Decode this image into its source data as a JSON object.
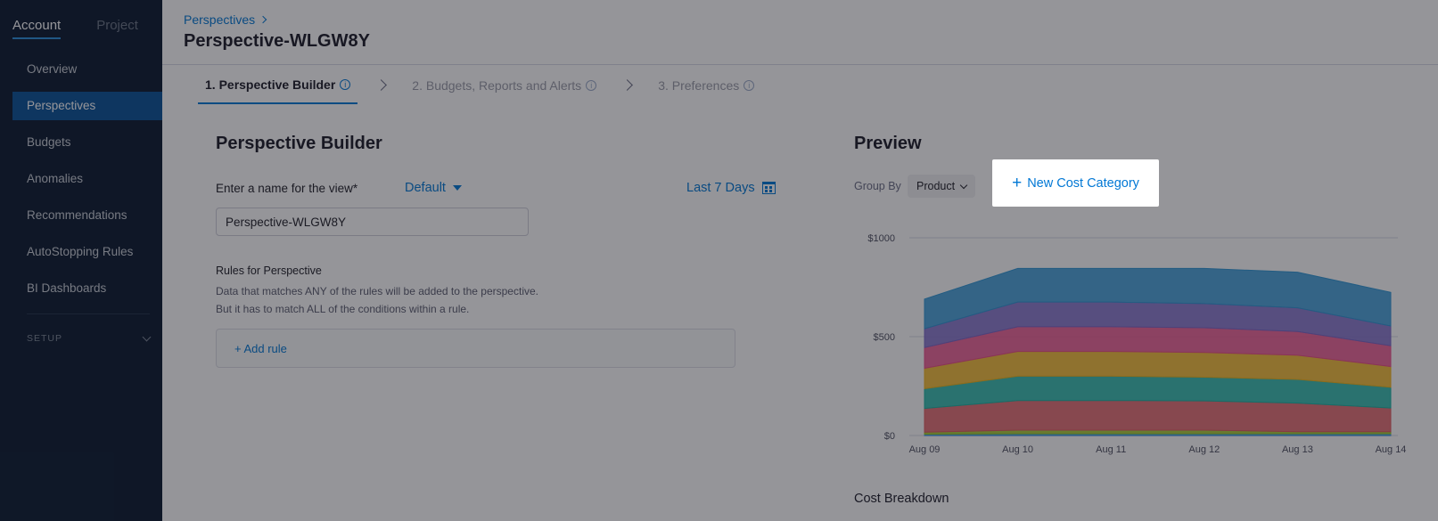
{
  "sidebar": {
    "scope_tabs": [
      {
        "label": "Account",
        "active": true
      },
      {
        "label": "Project",
        "active": false
      }
    ],
    "items": [
      {
        "label": "Overview",
        "active": false
      },
      {
        "label": "Perspectives",
        "active": true
      },
      {
        "label": "Budgets",
        "active": false
      },
      {
        "label": "Anomalies",
        "active": false
      },
      {
        "label": "Recommendations",
        "active": false
      },
      {
        "label": "AutoStopping Rules",
        "active": false
      },
      {
        "label": "BI Dashboards",
        "active": false
      }
    ],
    "setup_label": "SETUP"
  },
  "header": {
    "breadcrumb": "Perspectives",
    "title": "Perspective-WLGW8Y"
  },
  "steps": [
    {
      "label": "1. Perspective Builder",
      "active": true
    },
    {
      "label": "2. Budgets, Reports and Alerts",
      "active": false
    },
    {
      "label": "3. Preferences",
      "active": false
    }
  ],
  "info_glyph": "i",
  "builder": {
    "title": "Perspective Builder",
    "name_label": "Enter a name for the view*",
    "name_value": "Perspective-WLGW8Y",
    "view_dropdown": "Default",
    "time_range": "Last 7 Days",
    "rules_title": "Rules for Perspective",
    "rules_desc_1": "Data that matches ANY of the rules will be added to the perspective.",
    "rules_desc_2": "But it has to match ALL of the conditions within a rule.",
    "add_rule": "+ Add rule"
  },
  "preview": {
    "title": "Preview",
    "group_by_label": "Group By",
    "group_by_value": "Product",
    "new_cost_category_plus": "+",
    "new_cost_category": "New Cost Category",
    "cost_breakdown": "Cost Breakdown"
  },
  "chart_data": {
    "type": "area",
    "stacked": true,
    "categories": [
      "Aug 09",
      "Aug 10",
      "Aug 11",
      "Aug 12",
      "Aug 13",
      "Aug 14"
    ],
    "y_ticks": [
      "$0",
      "$500",
      "$1000"
    ],
    "ylim": [
      0,
      1000
    ],
    "grid": true,
    "colors": [
      "#1f6fd1",
      "#3fa8e0",
      "#a1c71f",
      "#e05c62",
      "#1bb5a5",
      "#f2b51c",
      "#ec4f8a",
      "#7b69c8",
      "#3097d6"
    ],
    "series": [
      {
        "values": [
          2,
          3,
          3,
          3,
          3,
          3
        ]
      },
      {
        "values": [
          5,
          6,
          6,
          6,
          6,
          6
        ]
      },
      {
        "values": [
          10,
          18,
          18,
          18,
          10,
          10
        ]
      },
      {
        "values": [
          120,
          150,
          150,
          148,
          145,
          120
        ]
      },
      {
        "values": [
          100,
          123,
          123,
          120,
          120,
          105
        ]
      },
      {
        "values": [
          103,
          125,
          125,
          125,
          122,
          105
        ]
      },
      {
        "values": [
          105,
          125,
          125,
          125,
          120,
          105
        ]
      },
      {
        "values": [
          95,
          125,
          125,
          122,
          120,
          100
        ]
      },
      {
        "values": [
          150,
          170,
          170,
          178,
          180,
          170
        ]
      }
    ]
  }
}
